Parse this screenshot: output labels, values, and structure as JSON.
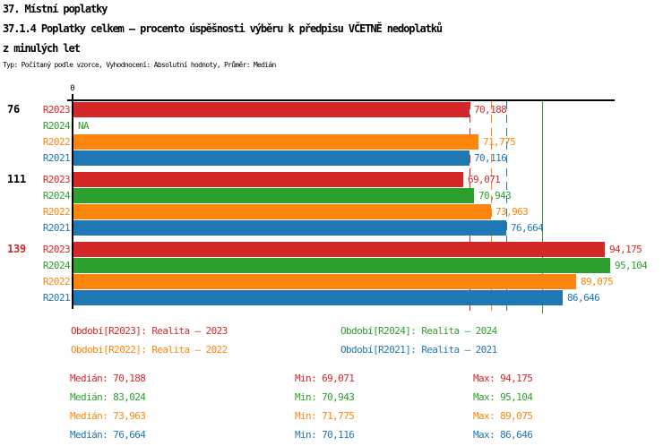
{
  "header": {
    "line1": "37. Místní poplatky",
    "line2": "37.1.4 Poplatky celkem – procento úspěšnosti výběru k předpisu VČETNĚ nedoplatků",
    "line3": "z minulých let",
    "meta": "Typ: Počítaný podle vzorce, Vyhodnocení: Absolutní hodnoty, Průměr: Medián"
  },
  "chart_data": {
    "type": "bar",
    "orientation": "horizontal",
    "title": "37.1.4 Poplatky celkem – procento úspěšnosti výběru k předpisu VČETNĚ nedoplatků z minulých let",
    "axis": {
      "origin_label": "0",
      "x_range": [
        0,
        96000
      ],
      "grid": false
    },
    "series": [
      {
        "id": "R2023",
        "name": "Realita – 2023",
        "color": "#d62728",
        "median": 70188,
        "median_display": "70,188",
        "median_line_style": "dashed"
      },
      {
        "id": "R2024",
        "name": "Realita – 2024",
        "color": "#2ca02c",
        "median": 83024,
        "median_display": "83,024",
        "median_line_style": "solid"
      },
      {
        "id": "R2022",
        "name": "Realita – 2022",
        "color": "#fd850e",
        "median": 73963,
        "median_display": "73,963",
        "median_line_style": "dashed"
      },
      {
        "id": "R2021",
        "name": "Realita – 2021",
        "color": "#1f77b4",
        "median": 76664,
        "median_display": "76,664",
        "median_line_style": "dashed"
      }
    ],
    "groups": [
      {
        "label": "76",
        "label_color": "#000000",
        "bars": [
          {
            "series": "R2023",
            "value": 70188,
            "display": "70,188"
          },
          {
            "series": "R2024",
            "value": null,
            "display": "NA"
          },
          {
            "series": "R2022",
            "value": 71775,
            "display": "71,775"
          },
          {
            "series": "R2021",
            "value": 70116,
            "display": "70,116"
          }
        ]
      },
      {
        "label": "111",
        "label_color": "#000000",
        "bars": [
          {
            "series": "R2023",
            "value": 69071,
            "display": "69,071"
          },
          {
            "series": "R2024",
            "value": 70943,
            "display": "70,943"
          },
          {
            "series": "R2022",
            "value": 73963,
            "display": "73,963"
          },
          {
            "series": "R2021",
            "value": 76664,
            "display": "76,664"
          }
        ]
      },
      {
        "label": "139",
        "label_color": "#d62728",
        "bars": [
          {
            "series": "R2023",
            "value": 94175,
            "display": "94,175"
          },
          {
            "series": "R2024",
            "value": 95104,
            "display": "95,104"
          },
          {
            "series": "R2022",
            "value": 89075,
            "display": "89,075"
          },
          {
            "series": "R2021",
            "value": 86646,
            "display": "86,646"
          }
        ]
      }
    ]
  },
  "legend": {
    "items": [
      {
        "series": "R2023",
        "label": "Období[R2023]: Realita – 2023"
      },
      {
        "series": "R2024",
        "label": "Období[R2024]: Realita – 2024"
      },
      {
        "series": "R2022",
        "label": "Období[R2022]: Realita – 2022"
      },
      {
        "series": "R2021",
        "label": "Období[R2021]: Realita – 2021"
      }
    ]
  },
  "stats": {
    "median_label": "Medián",
    "min_label": "Min",
    "max_label": "Max",
    "rows": [
      {
        "series": "R2023",
        "median": "70,188",
        "min": "69,071",
        "max": "94,175"
      },
      {
        "series": "R2024",
        "median": "83,024",
        "min": "70,943",
        "max": "95,104"
      },
      {
        "series": "R2022",
        "median": "73,963",
        "min": "71,775",
        "max": "89,075"
      },
      {
        "series": "R2021",
        "median": "76,664",
        "min": "70,116",
        "max": "86,646"
      }
    ]
  }
}
